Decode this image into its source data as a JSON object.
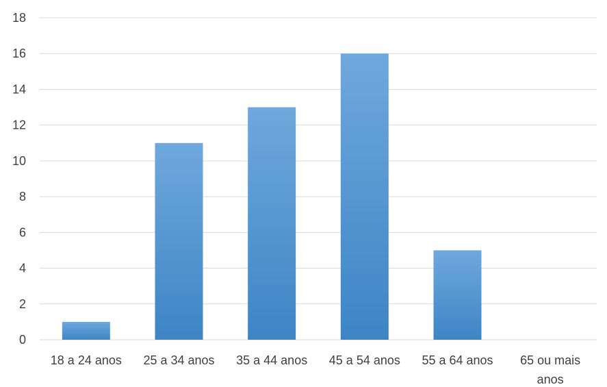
{
  "chart_data": {
    "type": "bar",
    "categories": [
      "18 a 24 anos",
      "25 a 34 anos",
      "35 a 44 anos",
      "45 a 54 anos",
      "55 a 64 anos",
      "65 ou mais anos"
    ],
    "category_label_lines": [
      [
        "18 a 24 anos"
      ],
      [
        "25 a 34 anos"
      ],
      [
        "35 a 44 anos"
      ],
      [
        "45 a 54 anos"
      ],
      [
        "55 a 64 anos"
      ],
      [
        "65 ou mais",
        "anos"
      ]
    ],
    "values": [
      1,
      11,
      13,
      16,
      5,
      0
    ],
    "title": "",
    "xlabel": "",
    "ylabel": "",
    "ylim": [
      0,
      18
    ],
    "yticks": [
      0,
      2,
      4,
      6,
      8,
      10,
      12,
      14,
      16,
      18
    ],
    "grid": true,
    "legend": "none",
    "colors": {
      "bar_top": "#6fa8dc",
      "bar_bottom": "#3d85c6",
      "grid": "#d9d9d9",
      "text": "#404040"
    }
  }
}
